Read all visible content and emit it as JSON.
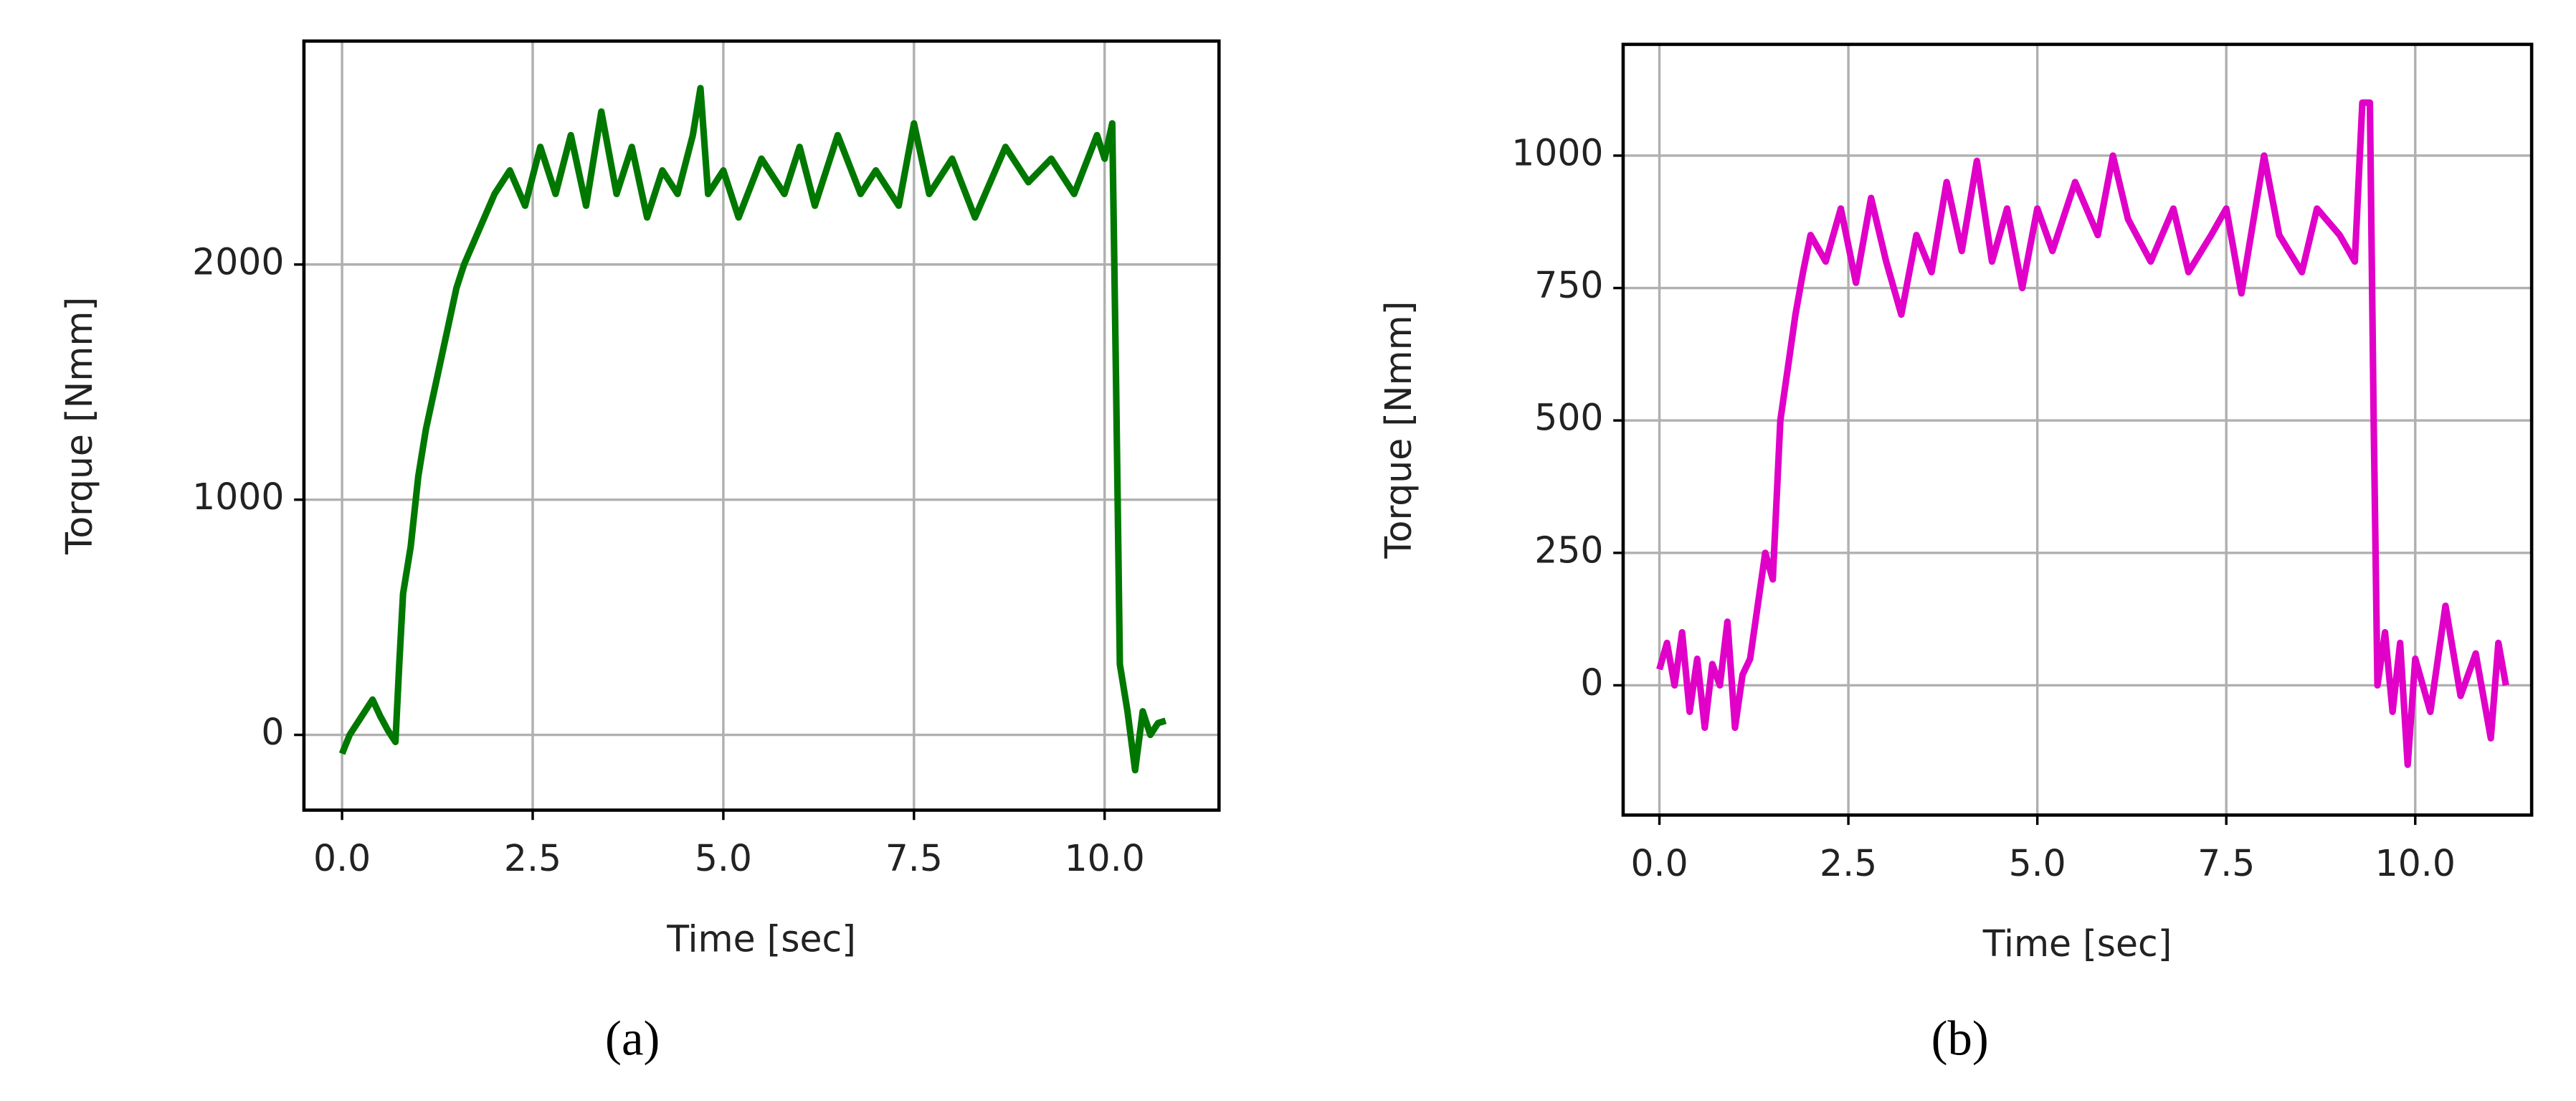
{
  "chart_data": [
    {
      "type": "line",
      "caption": "(a)",
      "xlabel": "Time [sec]",
      "ylabel": "Torque [Nmm]",
      "grid": true,
      "xlim": [
        -0.5,
        11.5
      ],
      "ylim": [
        -320,
        2950
      ],
      "xticks": [
        {
          "value": 0,
          "label": "0.0"
        },
        {
          "value": 2.5,
          "label": "2.5"
        },
        {
          "value": 5,
          "label": "5.0"
        },
        {
          "value": 7.5,
          "label": "7.5"
        },
        {
          "value": 10,
          "label": "10.0"
        }
      ],
      "yticks": [
        0,
        1000,
        2000
      ],
      "x": [
        0,
        0.1,
        0.2,
        0.3,
        0.4,
        0.5,
        0.6,
        0.7,
        0.75,
        0.8,
        0.9,
        1.0,
        1.1,
        1.2,
        1.3,
        1.4,
        1.5,
        1.6,
        1.8,
        2.0,
        2.2,
        2.4,
        2.6,
        2.8,
        3.0,
        3.2,
        3.4,
        3.6,
        3.8,
        4.0,
        4.2,
        4.4,
        4.6,
        4.7,
        4.8,
        5.0,
        5.2,
        5.5,
        5.8,
        6.0,
        6.2,
        6.5,
        6.8,
        7.0,
        7.3,
        7.5,
        7.7,
        8.0,
        8.3,
        8.5,
        8.7,
        9.0,
        9.3,
        9.6,
        9.9,
        10.0,
        10.1,
        10.15,
        10.2,
        10.3,
        10.4,
        10.5,
        10.6,
        10.7,
        10.8
      ],
      "series": [
        {
          "color": "#007800",
          "values": [
            -80,
            0,
            50,
            100,
            150,
            80,
            20,
            -30,
            300,
            600,
            800,
            1100,
            1300,
            1450,
            1600,
            1750,
            1900,
            2000,
            2150,
            2300,
            2400,
            2250,
            2500,
            2300,
            2550,
            2250,
            2650,
            2300,
            2500,
            2200,
            2400,
            2300,
            2550,
            2750,
            2300,
            2400,
            2200,
            2450,
            2300,
            2500,
            2250,
            2550,
            2300,
            2400,
            2250,
            2600,
            2300,
            2450,
            2200,
            2350,
            2500,
            2350,
            2450,
            2300,
            2550,
            2450,
            2600,
            1500,
            300,
            100,
            -150,
            100,
            0,
            50,
            60
          ]
        }
      ]
    },
    {
      "type": "line",
      "caption": "(b)",
      "xlabel": "Time [sec]",
      "ylabel": "Torque [Nmm]",
      "grid": true,
      "xlim": [
        -0.48,
        11.54
      ],
      "ylim": [
        -245,
        1210
      ],
      "xticks": [
        {
          "value": 0,
          "label": "0.0"
        },
        {
          "value": 2.5,
          "label": "2.5"
        },
        {
          "value": 5,
          "label": "5.0"
        },
        {
          "value": 7.5,
          "label": "7.5"
        },
        {
          "value": 10,
          "label": "10.0"
        }
      ],
      "yticks": [
        0,
        250,
        500,
        750,
        1000
      ],
      "x": [
        0,
        0.1,
        0.2,
        0.3,
        0.4,
        0.5,
        0.6,
        0.7,
        0.8,
        0.9,
        1.0,
        1.1,
        1.2,
        1.3,
        1.4,
        1.5,
        1.6,
        1.7,
        1.8,
        1.9,
        2.0,
        2.2,
        2.4,
        2.6,
        2.8,
        3.0,
        3.2,
        3.4,
        3.6,
        3.8,
        4.0,
        4.2,
        4.4,
        4.6,
        4.8,
        5.0,
        5.2,
        5.5,
        5.8,
        6.0,
        6.2,
        6.5,
        6.8,
        7.0,
        7.3,
        7.5,
        7.7,
        8.0,
        8.2,
        8.5,
        8.7,
        9.0,
        9.2,
        9.3,
        9.4,
        9.45,
        9.5,
        9.6,
        9.7,
        9.8,
        9.9,
        10.0,
        10.2,
        10.4,
        10.6,
        10.8,
        11.0,
        11.1,
        11.2
      ],
      "series": [
        {
          "color": "#e000c8",
          "values": [
            30,
            80,
            0,
            100,
            -50,
            50,
            -80,
            40,
            0,
            120,
            -80,
            20,
            50,
            150,
            250,
            200,
            500,
            600,
            700,
            780,
            850,
            800,
            900,
            760,
            920,
            800,
            700,
            850,
            780,
            950,
            820,
            990,
            800,
            900,
            750,
            900,
            820,
            950,
            850,
            1000,
            880,
            800,
            900,
            780,
            850,
            900,
            740,
            1000,
            850,
            780,
            900,
            850,
            800,
            1100,
            1100,
            500,
            0,
            100,
            -50,
            80,
            -150,
            50,
            -50,
            150,
            -20,
            60,
            -100,
            80,
            0
          ]
        }
      ]
    }
  ]
}
